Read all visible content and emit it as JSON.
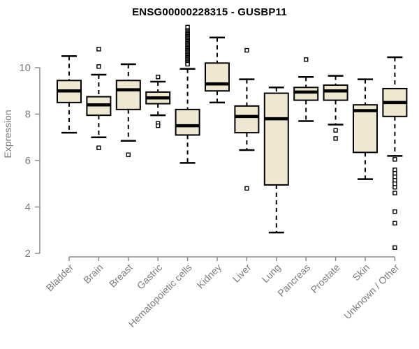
{
  "chart_data": {
    "type": "boxplot",
    "title": "ENSG00000228315 - GUSBP11",
    "ylabel": "Expression",
    "xlabel": "",
    "yticks": [
      2,
      4,
      6,
      8,
      10
    ],
    "ylim": [
      2,
      11.8
    ],
    "grid": false,
    "legend": "none",
    "categories": [
      "Bladder",
      "Brain",
      "Breast",
      "Gastric",
      "Hematopoietic cells",
      "Kidney",
      "Liver",
      "Lung",
      "Pancreas",
      "Prostate",
      "Skin",
      "Unknown / Other"
    ],
    "series": [
      {
        "label": "Bladder",
        "whislo": 7.2,
        "q1": 8.5,
        "med": 9.0,
        "q3": 9.45,
        "whishi": 10.5,
        "outliers": []
      },
      {
        "label": "Brain",
        "whislo": 7.0,
        "q1": 7.95,
        "med": 8.4,
        "q3": 8.75,
        "whishi": 9.7,
        "outliers": [
          10.8,
          10.05,
          6.55
        ]
      },
      {
        "label": "Breast",
        "whislo": 6.85,
        "q1": 8.2,
        "med": 9.05,
        "q3": 9.45,
        "whishi": 10.15,
        "outliers": [
          6.25
        ]
      },
      {
        "label": "Gastric",
        "whislo": 7.95,
        "q1": 8.45,
        "med": 8.7,
        "q3": 8.95,
        "whishi": 9.4,
        "outliers": [
          9.6,
          7.6,
          7.5
        ]
      },
      {
        "label": "Hematopoietic cells",
        "whislo": 5.9,
        "q1": 7.1,
        "med": 7.5,
        "q3": 8.2,
        "whishi": 9.95,
        "outliers": [
          11.75,
          11.6,
          11.55,
          11.5,
          11.45,
          11.4,
          11.35,
          11.3,
          11.25,
          11.2,
          11.15,
          11.1,
          11.05,
          11.0,
          10.95,
          10.9,
          10.85,
          10.8,
          10.75,
          10.7,
          10.65,
          10.6,
          10.55,
          10.5,
          10.45,
          10.4,
          10.35,
          10.3,
          10.25,
          10.2,
          10.15
        ]
      },
      {
        "label": "Kidney",
        "whislo": 8.5,
        "q1": 9.0,
        "med": 9.3,
        "q3": 10.2,
        "whishi": 11.3,
        "outliers": []
      },
      {
        "label": "Liver",
        "whislo": 6.45,
        "q1": 7.2,
        "med": 7.9,
        "q3": 8.35,
        "whishi": 9.5,
        "outliers": [
          10.75,
          4.8
        ]
      },
      {
        "label": "Lung",
        "whislo": 2.9,
        "q1": 4.95,
        "med": 7.8,
        "q3": 8.9,
        "whishi": 9.15,
        "outliers": []
      },
      {
        "label": "Pancreas",
        "whislo": 7.7,
        "q1": 8.6,
        "med": 8.95,
        "q3": 9.15,
        "whishi": 9.6,
        "outliers": [
          10.35
        ]
      },
      {
        "label": "Prostate",
        "whislo": 7.55,
        "q1": 8.6,
        "med": 9.0,
        "q3": 9.25,
        "whishi": 9.65,
        "outliers": [
          7.3,
          6.95
        ]
      },
      {
        "label": "Skin",
        "whislo": 5.2,
        "q1": 6.35,
        "med": 8.15,
        "q3": 8.4,
        "whishi": 9.5,
        "outliers": []
      },
      {
        "label": "Unknown / Other",
        "whislo": 6.2,
        "q1": 7.9,
        "med": 8.5,
        "q3": 9.1,
        "whishi": 10.45,
        "outliers": [
          6.05,
          5.6,
          5.45,
          5.3,
          5.15,
          5.0,
          4.85,
          4.6,
          3.8,
          3.3,
          2.25
        ]
      }
    ]
  },
  "colors": {
    "box_fill": "#EDE8CF",
    "box_border": "#000000",
    "median": "#000000",
    "whisker": "#000000",
    "outlier_border": "#000000",
    "axis": "#8C8C8C",
    "tick_label": "#7D7D7D",
    "title": "#000000",
    "background": "#FFFFFF"
  }
}
